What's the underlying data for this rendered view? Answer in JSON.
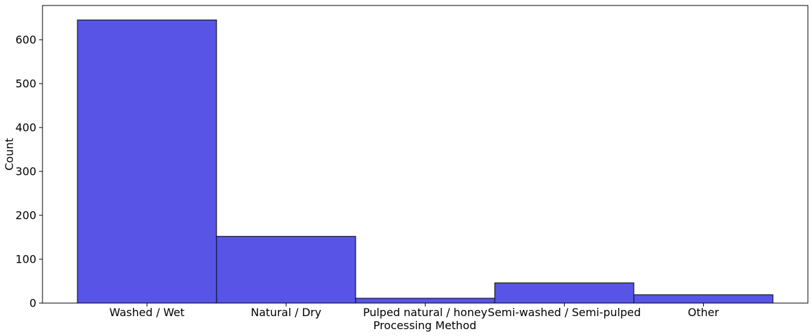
{
  "chart_data": {
    "type": "bar",
    "categories": [
      "Washed / Wet",
      "Natural / Dry",
      "Pulped natural / honey",
      "Semi-washed / Semi-pulped",
      "Other"
    ],
    "values": [
      645,
      152,
      11,
      46,
      19
    ],
    "title": "",
    "xlabel": "Processing Method",
    "ylabel": "Count",
    "ylim": [
      0,
      678
    ],
    "yticks": [
      0,
      100,
      200,
      300,
      400,
      500,
      600
    ],
    "grid": false,
    "bar_color": "#5754e6",
    "edge_color": "#000000"
  }
}
